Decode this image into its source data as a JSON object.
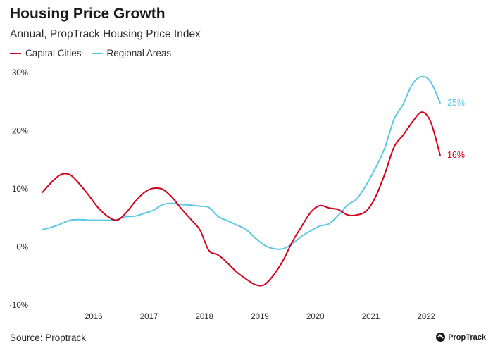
{
  "header": {
    "title": "Housing Price Growth",
    "subtitle": "Annual, PropTrack Housing Price Index"
  },
  "footer": {
    "source": "Source: Proptrack",
    "brand": "PropTrack"
  },
  "chart_data": {
    "type": "line",
    "title": "Housing Price Growth",
    "subtitle": "Annual, PropTrack Housing Price Index",
    "xlabel": "",
    "ylabel": "",
    "xlim": [
      2015.0,
      2023.0
    ],
    "ylim": [
      -10,
      30
    ],
    "yticks": [
      {
        "value": -10,
        "label": "-10%"
      },
      {
        "value": 0,
        "label": "0%"
      },
      {
        "value": 10,
        "label": "10%"
      },
      {
        "value": 20,
        "label": "20%"
      },
      {
        "value": 30,
        "label": "30%"
      }
    ],
    "xticks": [
      {
        "value": 2016,
        "label": "2016"
      },
      {
        "value": 2017,
        "label": "2017"
      },
      {
        "value": 2018,
        "label": "2018"
      },
      {
        "value": 2019,
        "label": "2019"
      },
      {
        "value": 2020,
        "label": "2020"
      },
      {
        "value": 2021,
        "label": "2021"
      },
      {
        "value": 2022,
        "label": "2022"
      }
    ],
    "grid": false,
    "legend": "top-left",
    "series": [
      {
        "name": "Capital Cities",
        "color": "#d0021b",
        "end_label": "16%",
        "x": [
          2015.08,
          2015.25,
          2015.42,
          2015.58,
          2015.75,
          2015.92,
          2016.08,
          2016.25,
          2016.42,
          2016.58,
          2016.75,
          2016.92,
          2017.08,
          2017.25,
          2017.42,
          2017.58,
          2017.75,
          2017.92,
          2018.08,
          2018.25,
          2018.42,
          2018.58,
          2018.75,
          2018.92,
          2019.08,
          2019.25,
          2019.42,
          2019.58,
          2019.75,
          2019.92,
          2020.08,
          2020.25,
          2020.42,
          2020.58,
          2020.75,
          2020.92,
          2021.08,
          2021.25,
          2021.42,
          2021.58,
          2021.75,
          2021.92,
          2022.08,
          2022.25
        ],
        "values": [
          9.4,
          11.2,
          12.5,
          12.4,
          10.8,
          8.8,
          6.8,
          5.3,
          4.6,
          5.8,
          7.8,
          9.4,
          10.1,
          9.9,
          8.5,
          6.6,
          4.8,
          2.9,
          -0.6,
          -1.4,
          -2.8,
          -4.3,
          -5.5,
          -6.5,
          -6.5,
          -4.8,
          -2.3,
          0.8,
          3.5,
          6.0,
          7.1,
          6.7,
          6.4,
          5.5,
          5.5,
          6.2,
          8.5,
          12.5,
          17.2,
          19.2,
          21.5,
          23.2,
          21.5,
          15.8
        ]
      },
      {
        "name": "Regional Areas",
        "color": "#5bc8e8",
        "end_label": "25%",
        "x": [
          2015.08,
          2015.25,
          2015.42,
          2015.58,
          2015.75,
          2015.92,
          2016.08,
          2016.25,
          2016.42,
          2016.58,
          2016.75,
          2016.92,
          2017.08,
          2017.25,
          2017.42,
          2017.58,
          2017.75,
          2017.92,
          2018.08,
          2018.25,
          2018.42,
          2018.58,
          2018.75,
          2018.92,
          2019.08,
          2019.25,
          2019.42,
          2019.58,
          2019.75,
          2019.92,
          2020.08,
          2020.25,
          2020.42,
          2020.58,
          2020.75,
          2020.92,
          2021.08,
          2021.25,
          2021.42,
          2021.58,
          2021.75,
          2021.92,
          2022.08,
          2022.25
        ],
        "values": [
          3.0,
          3.4,
          4.0,
          4.6,
          4.7,
          4.6,
          4.6,
          4.6,
          4.7,
          5.2,
          5.3,
          5.8,
          6.3,
          7.3,
          7.5,
          7.3,
          7.2,
          7.0,
          6.8,
          5.2,
          4.5,
          3.8,
          3.0,
          1.5,
          0.3,
          -0.3,
          -0.3,
          0.5,
          1.8,
          2.8,
          3.6,
          4.0,
          5.5,
          7.2,
          8.3,
          10.7,
          13.5,
          17.0,
          22.0,
          24.5,
          28.0,
          29.3,
          28.4,
          24.8
        ]
      }
    ]
  }
}
